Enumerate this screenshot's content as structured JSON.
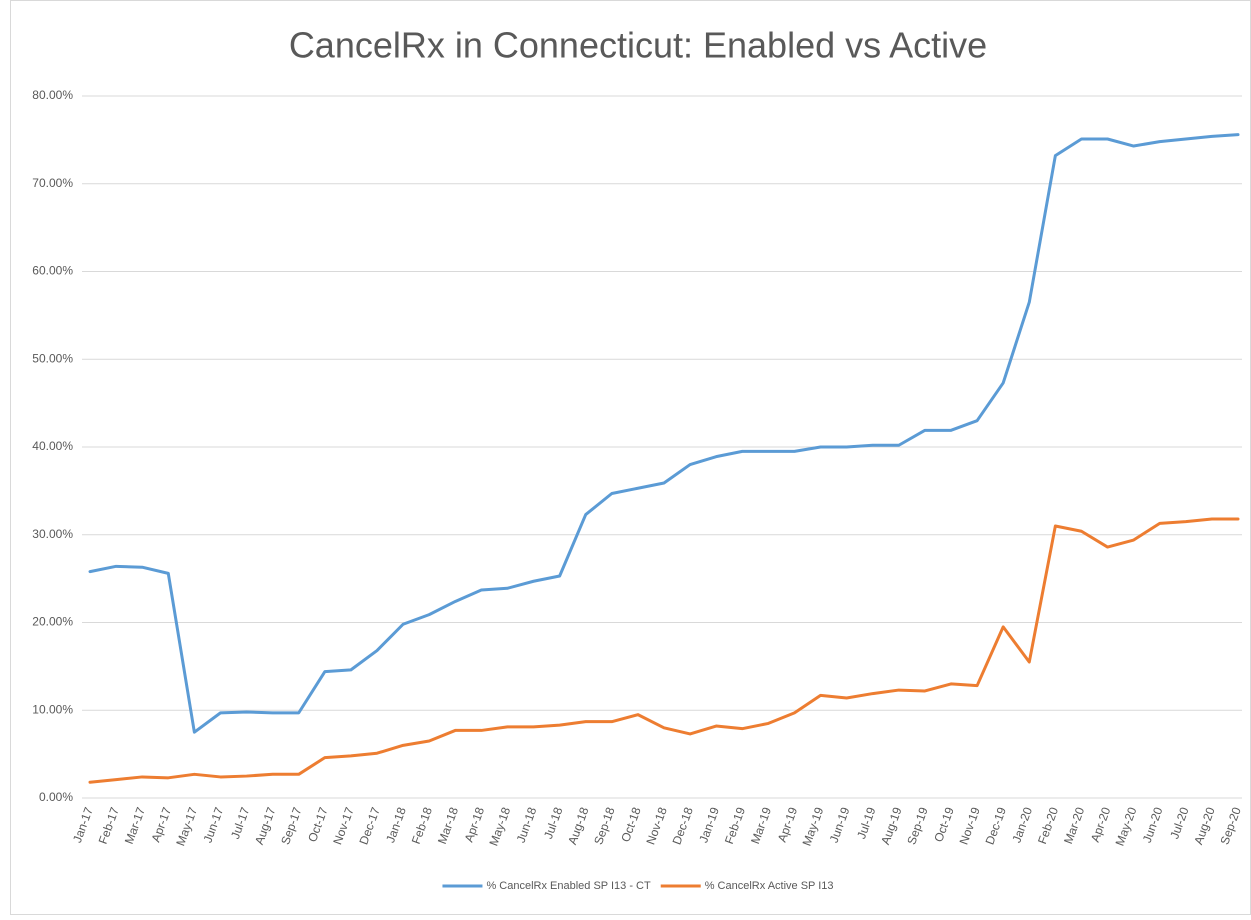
{
  "chart_data": {
    "type": "line",
    "title": "CancelRx in Connecticut: Enabled vs Active",
    "categories": [
      "Jan-17",
      "Feb-17",
      "Mar-17",
      "Apr-17",
      "May-17",
      "Jun-17",
      "Jul-17",
      "Aug-17",
      "Sep-17",
      "Oct-17",
      "Nov-17",
      "Dec-17",
      "Jan-18",
      "Feb-18",
      "Mar-18",
      "Apr-18",
      "May-18",
      "Jun-18",
      "Jul-18",
      "Aug-18",
      "Sep-18",
      "Oct-18",
      "Nov-18",
      "Dec-18",
      "Jan-19",
      "Feb-19",
      "Mar-19",
      "Apr-19",
      "May-19",
      "Jun-19",
      "Jul-19",
      "Aug-19",
      "Sep-19",
      "Oct-19",
      "Nov-19",
      "Dec-19",
      "Jan-20",
      "Feb-20",
      "Mar-20",
      "Apr-20",
      "May-20",
      "Jun-20",
      "Jul-20",
      "Aug-20",
      "Sep-20"
    ],
    "series": [
      {
        "name": "% CancelRx Enabled SP I13 - CT",
        "color": "#5b9bd5",
        "values": [
          25.8,
          26.4,
          26.3,
          25.6,
          7.5,
          9.7,
          9.8,
          9.7,
          9.7,
          14.4,
          14.6,
          16.8,
          19.8,
          20.9,
          22.4,
          23.7,
          23.9,
          24.7,
          25.3,
          32.3,
          34.7,
          35.3,
          35.9,
          38.0,
          38.9,
          39.5,
          39.5,
          39.5,
          40.0,
          40.0,
          40.2,
          40.2,
          41.9,
          41.9,
          43.0,
          47.3,
          56.5,
          73.2,
          75.1,
          75.1,
          74.3,
          74.8,
          75.1,
          75.4,
          75.6
        ]
      },
      {
        "name": "% CancelRx Active SP I13",
        "color": "#ed7d31",
        "values": [
          1.8,
          2.1,
          2.4,
          2.3,
          2.7,
          2.4,
          2.5,
          2.7,
          2.7,
          4.6,
          4.8,
          5.1,
          6.0,
          6.5,
          7.7,
          7.7,
          8.1,
          8.1,
          8.3,
          8.7,
          8.7,
          9.5,
          8.0,
          7.3,
          8.2,
          7.9,
          8.5,
          9.7,
          11.7,
          11.4,
          11.9,
          12.3,
          12.2,
          13.0,
          12.8,
          19.5,
          15.5,
          31.0,
          30.4,
          28.6,
          29.4,
          31.3,
          31.5,
          31.8,
          31.8
        ]
      }
    ],
    "ylim": [
      0,
      80
    ],
    "yticks": [
      {
        "value": 0,
        "label": "0.00%"
      },
      {
        "value": 10,
        "label": "10.00%"
      },
      {
        "value": 20,
        "label": "20.00%"
      },
      {
        "value": 30,
        "label": "30.00%"
      },
      {
        "value": 40,
        "label": "40.00%"
      },
      {
        "value": 50,
        "label": "50.00%"
      },
      {
        "value": 60,
        "label": "60.00%"
      },
      {
        "value": 70,
        "label": "70.00%"
      },
      {
        "value": 80,
        "label": "80.00%"
      }
    ],
    "grid": true,
    "legend": "bottom"
  }
}
